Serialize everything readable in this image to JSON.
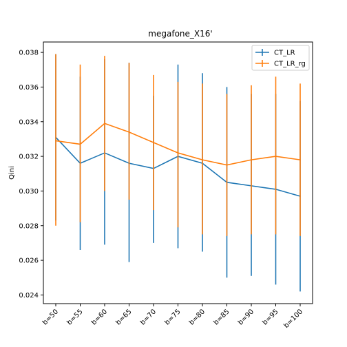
{
  "chart_data": {
    "type": "line",
    "title": "megafone_X16'",
    "xlabel": "",
    "ylabel": "Qini",
    "categories": [
      "b=50",
      "b=55",
      "b=60",
      "b=65",
      "b=70",
      "b=75",
      "b=80",
      "b=85",
      "b=90",
      "b=95",
      "b=100"
    ],
    "ylim": [
      0.0235,
      0.0386
    ],
    "yticks": [
      0.024,
      0.026,
      0.028,
      0.03,
      0.032,
      0.034,
      0.036,
      0.038
    ],
    "ytick_labels": [
      "0.024",
      "0.026",
      "0.028",
      "0.030",
      "0.032",
      "0.034",
      "0.036",
      "0.038"
    ],
    "grid": false,
    "legend_position": "top-right",
    "series": [
      {
        "name": "CT_LR",
        "color": "#1f77b4",
        "values": [
          0.0331,
          0.0316,
          0.0322,
          0.0316,
          0.0313,
          0.032,
          0.0316,
          0.0305,
          0.0303,
          0.0301,
          0.0297
        ],
        "err_low": [
          0.0283,
          0.0266,
          0.0269,
          0.0259,
          0.027,
          0.0267,
          0.0265,
          0.025,
          0.0251,
          0.0246,
          0.0242
        ],
        "err_high": [
          0.0379,
          0.0366,
          0.0376,
          0.0374,
          0.0355,
          0.0373,
          0.0368,
          0.036,
          0.0356,
          0.0356,
          0.0352
        ]
      },
      {
        "name": "CT_LR_rg",
        "color": "#ff7f0e",
        "values": [
          0.0329,
          0.0327,
          0.0339,
          0.0334,
          0.0328,
          0.0322,
          0.0318,
          0.0315,
          0.0318,
          0.032,
          0.0318
        ],
        "err_low": [
          0.028,
          0.0282,
          0.03,
          0.0295,
          0.0289,
          0.0279,
          0.0275,
          0.0274,
          0.0275,
          0.0275,
          0.0274
        ],
        "err_high": [
          0.0379,
          0.0373,
          0.0378,
          0.0374,
          0.0367,
          0.0363,
          0.0362,
          0.0356,
          0.0361,
          0.0366,
          0.0362
        ]
      }
    ]
  }
}
